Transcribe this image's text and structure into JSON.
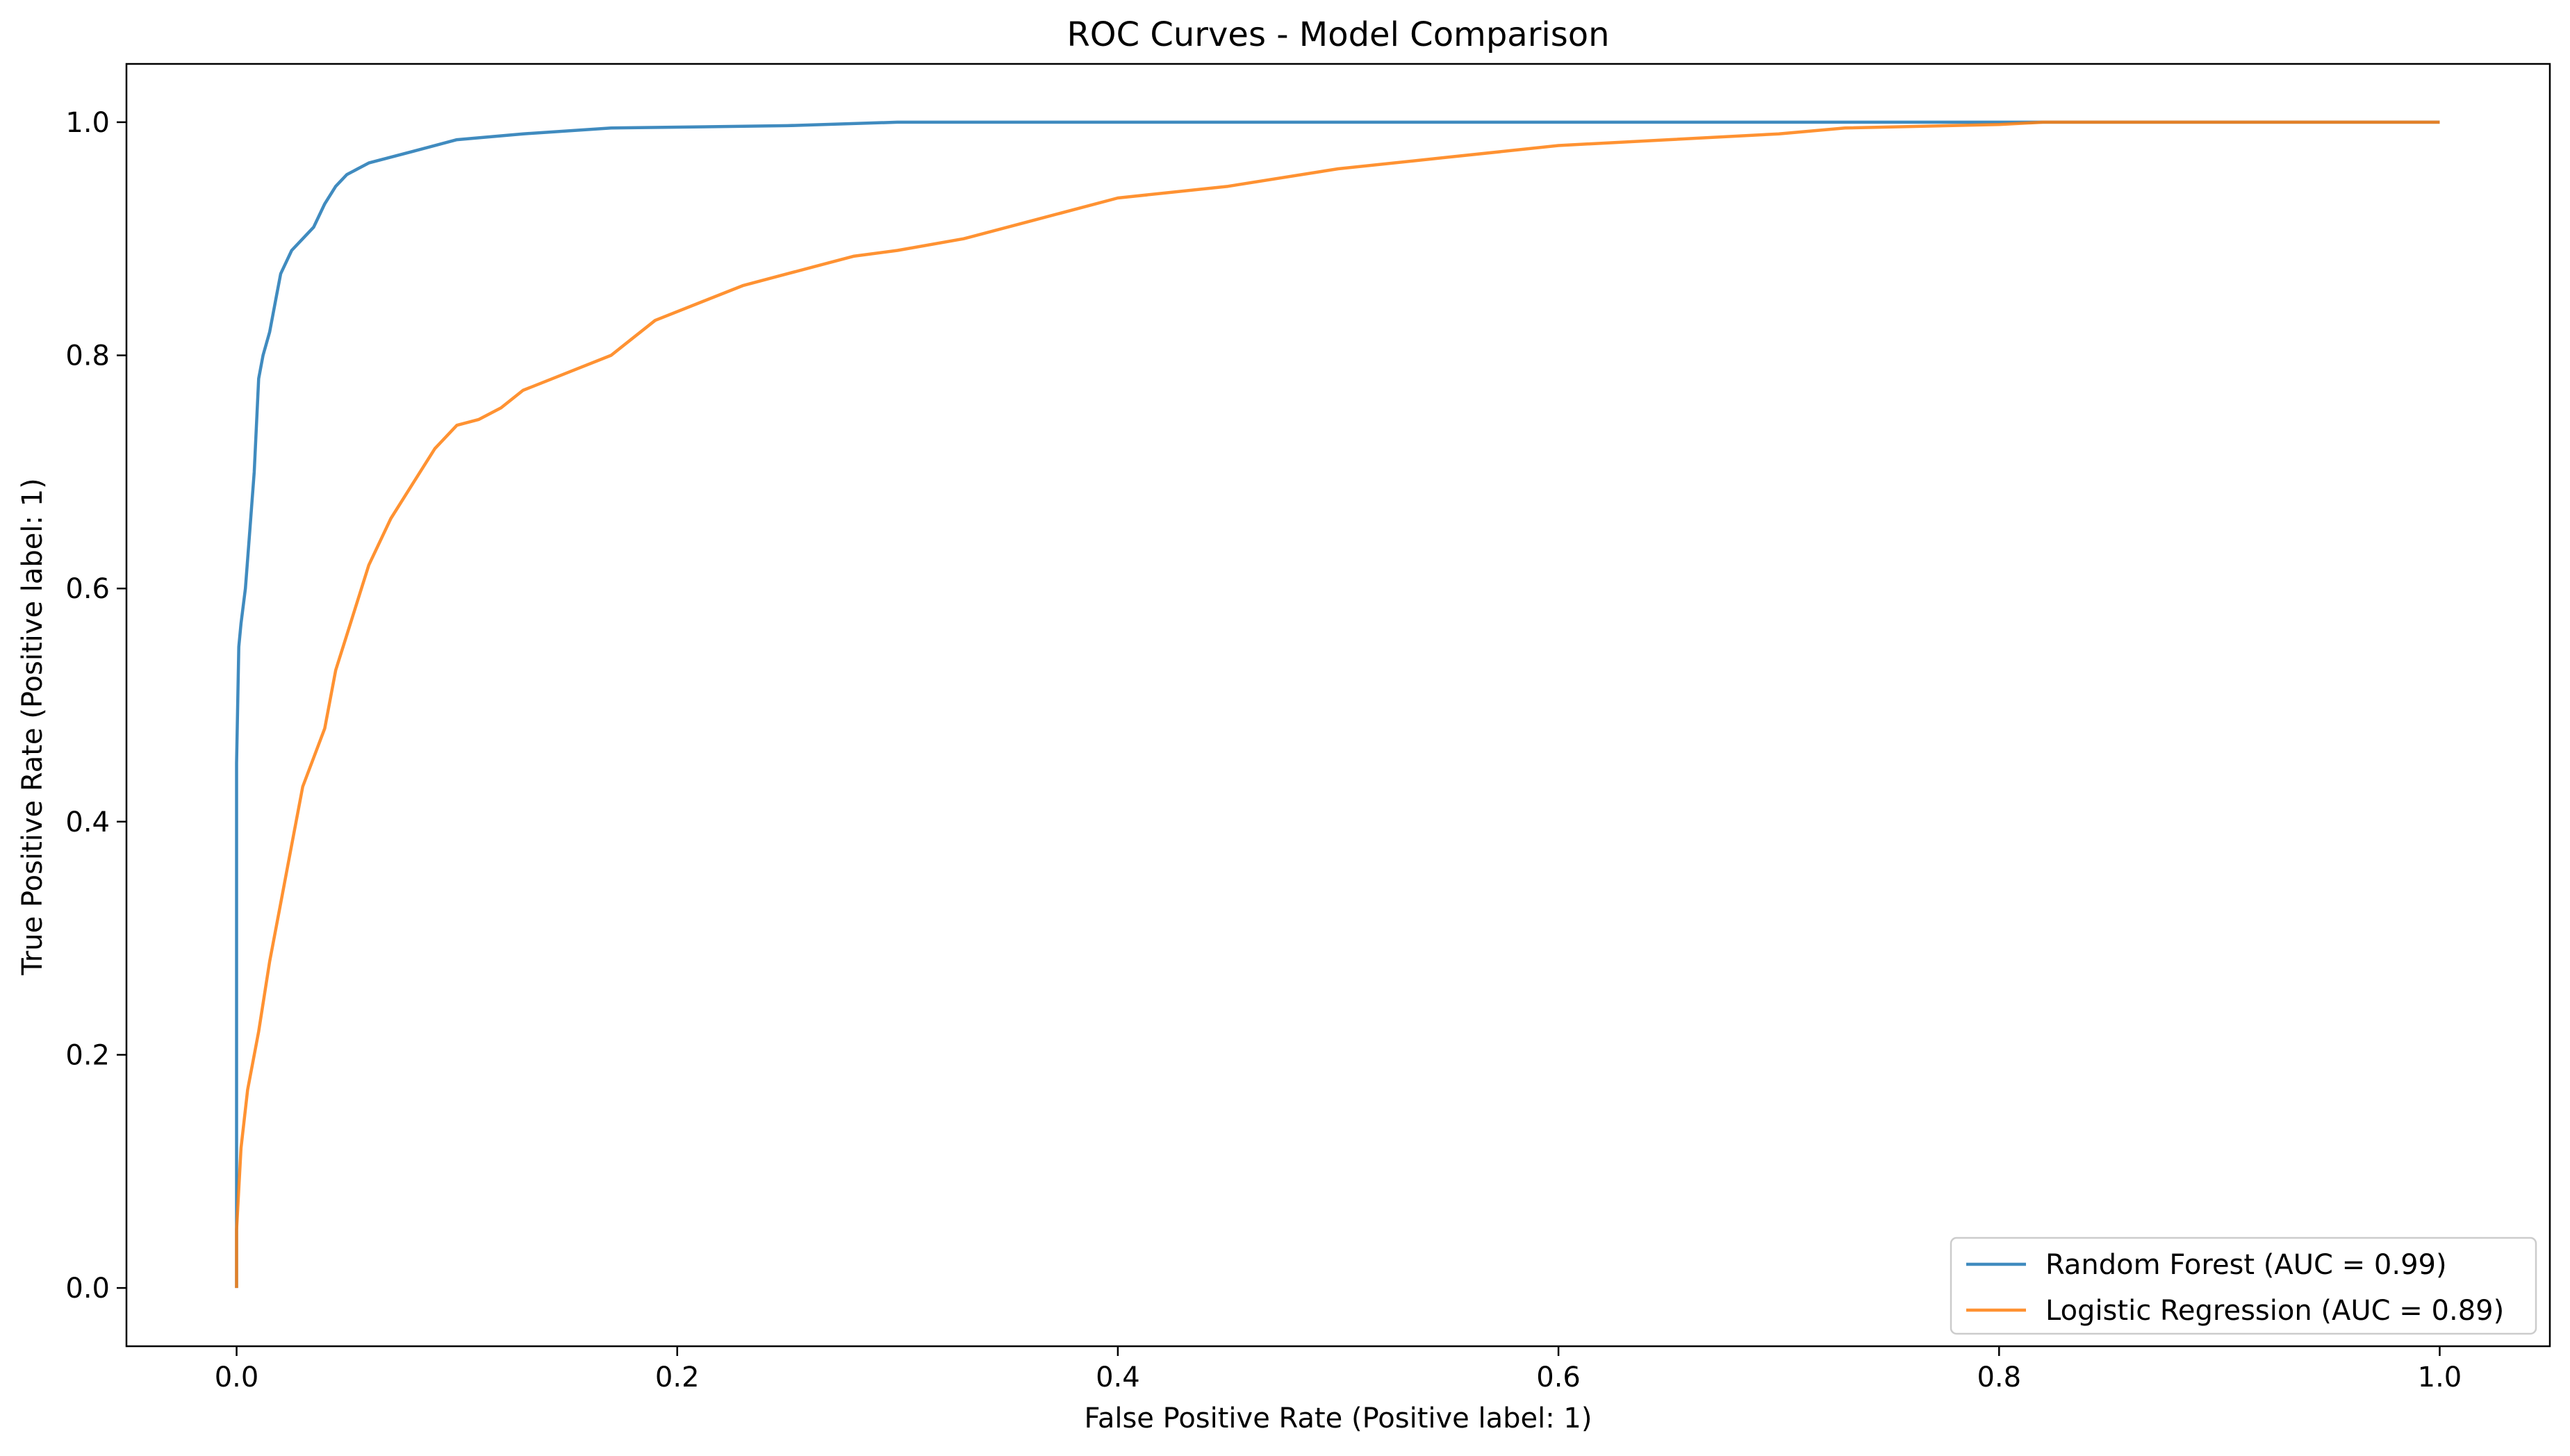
{
  "chart_data": {
    "type": "line",
    "title": "ROC Curves - Model Comparison",
    "xlabel": "False Positive Rate (Positive label: 1)",
    "ylabel": "True Positive Rate (Positive label: 1)",
    "xlim": [
      -0.05,
      1.05
    ],
    "ylim": [
      -0.05,
      1.05
    ],
    "xticks": [
      0.0,
      0.2,
      0.4,
      0.6,
      0.8,
      1.0
    ],
    "xtick_labels": [
      "0.0",
      "0.2",
      "0.4",
      "0.6",
      "0.8",
      "1.0"
    ],
    "yticks": [
      0.0,
      0.2,
      0.4,
      0.6,
      0.8,
      1.0
    ],
    "ytick_labels": [
      "0.0",
      "0.2",
      "0.4",
      "0.6",
      "0.8",
      "1.0"
    ],
    "grid": false,
    "legend_position": "lower-right",
    "series": [
      {
        "name": "Random Forest (AUC = 0.99)",
        "color": "#1f77b4",
        "x": [
          0.0,
          0.0,
          0.0,
          0.001,
          0.002,
          0.004,
          0.006,
          0.008,
          0.01,
          0.012,
          0.015,
          0.018,
          0.02,
          0.025,
          0.03,
          0.035,
          0.04,
          0.045,
          0.05,
          0.055,
          0.06,
          0.08,
          0.1,
          0.13,
          0.17,
          0.25,
          0.3,
          0.5,
          0.8,
          1.0
        ],
        "y": [
          0.0,
          0.3,
          0.45,
          0.55,
          0.57,
          0.6,
          0.65,
          0.7,
          0.78,
          0.8,
          0.82,
          0.85,
          0.87,
          0.89,
          0.9,
          0.91,
          0.93,
          0.945,
          0.955,
          0.96,
          0.965,
          0.975,
          0.985,
          0.99,
          0.995,
          0.997,
          1.0,
          1.0,
          1.0,
          1.0
        ]
      },
      {
        "name": "Logistic Regression (AUC = 0.89)",
        "color": "#ff7f0e",
        "x": [
          0.0,
          0.0,
          0.002,
          0.005,
          0.01,
          0.015,
          0.02,
          0.025,
          0.03,
          0.04,
          0.045,
          0.05,
          0.06,
          0.07,
          0.08,
          0.09,
          0.1,
          0.11,
          0.12,
          0.13,
          0.15,
          0.17,
          0.19,
          0.21,
          0.23,
          0.25,
          0.28,
          0.3,
          0.33,
          0.36,
          0.4,
          0.45,
          0.5,
          0.55,
          0.6,
          0.65,
          0.7,
          0.73,
          0.8,
          0.82,
          1.0
        ],
        "y": [
          0.0,
          0.05,
          0.12,
          0.17,
          0.22,
          0.28,
          0.33,
          0.38,
          0.43,
          0.48,
          0.53,
          0.56,
          0.62,
          0.66,
          0.69,
          0.72,
          0.74,
          0.745,
          0.755,
          0.77,
          0.785,
          0.8,
          0.83,
          0.845,
          0.86,
          0.87,
          0.885,
          0.89,
          0.9,
          0.915,
          0.935,
          0.945,
          0.96,
          0.97,
          0.98,
          0.985,
          0.99,
          0.995,
          0.998,
          1.0,
          1.0
        ]
      }
    ]
  }
}
